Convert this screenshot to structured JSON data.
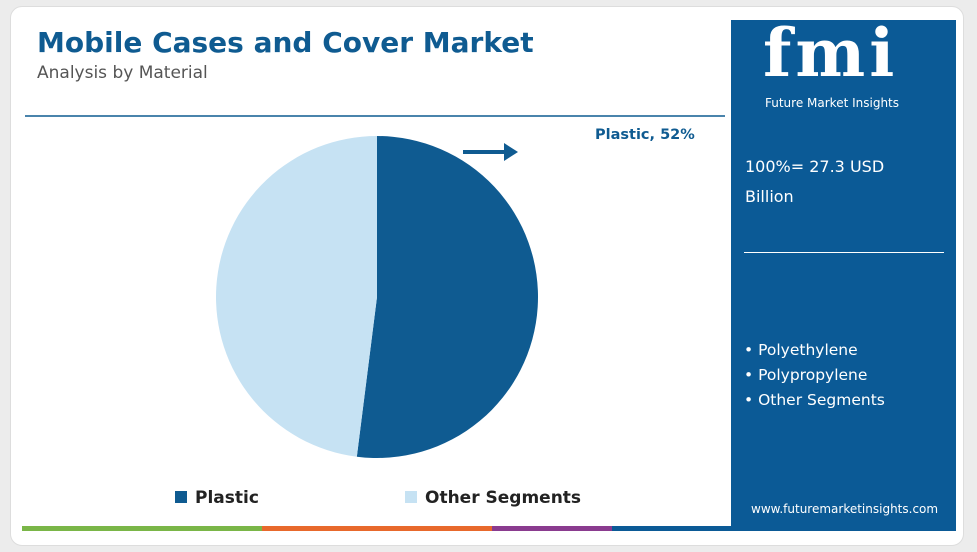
{
  "chart_data": {
    "type": "pie",
    "title": "Mobile Cases and Cover Market",
    "subtitle": "Analysis by Material",
    "categories": [
      "Plastic",
      "Other Segments"
    ],
    "values": [
      52,
      48
    ],
    "value_labels": [
      "Plastic, 52%",
      null
    ],
    "colors": [
      "#0f5b91",
      "#c6e2f3"
    ]
  },
  "panel": {
    "logo": "fmi",
    "logo_tagline": "Future Market Insights",
    "total": "100%= 27.3 USD Billion",
    "items": [
      "Polyethylene",
      "Polypropylene",
      "Other Segments"
    ],
    "website": "www.futuremarketinsights.com"
  }
}
